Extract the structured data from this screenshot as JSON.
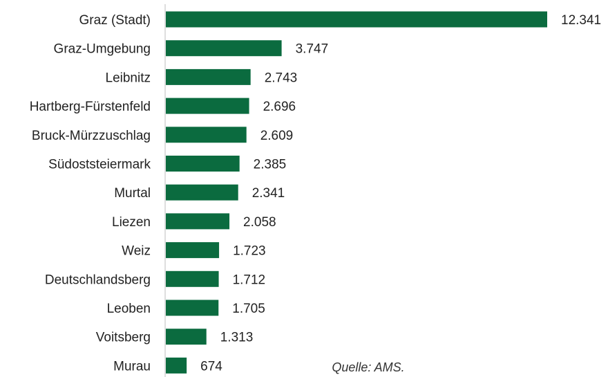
{
  "chart_data": {
    "type": "bar",
    "orientation": "horizontal",
    "categories": [
      "Graz (Stadt)",
      "Graz-Umgebung",
      "Leibnitz",
      "Hartberg-Fürstenfeld",
      "Bruck-Mürzzuschlag",
      "Südoststeiermark",
      "Murtal",
      "Liezen",
      "Weiz",
      "Deutschlandsberg",
      "Leoben",
      "Voitsberg",
      "Murau"
    ],
    "values": [
      12341,
      3747,
      2743,
      2696,
      2609,
      2385,
      2341,
      2058,
      1723,
      1712,
      1705,
      1313,
      674
    ],
    "value_labels": [
      "12.341",
      "3.747",
      "2.743",
      "2.696",
      "2.609",
      "2.385",
      "2.341",
      "2.058",
      "1.723",
      "1.712",
      "1.705",
      "1.313",
      "674"
    ],
    "xlim": [
      0,
      12341
    ],
    "grid": false,
    "legend": "none",
    "bar_color": "#0b6b3f"
  },
  "source_note": "Quelle: AMS."
}
